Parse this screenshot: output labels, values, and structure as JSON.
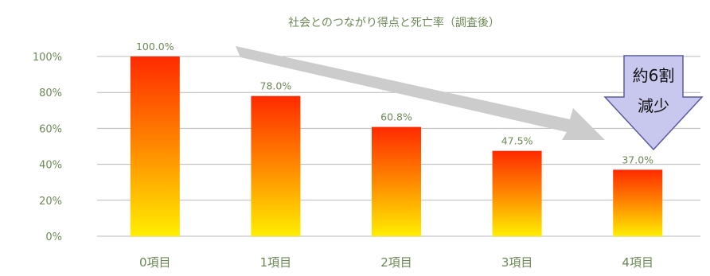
{
  "chart_data": {
    "type": "bar",
    "title": "社会とのつながり得点と死亡率（調査後）",
    "xlabel": "",
    "ylabel": "",
    "categories": [
      "0項目",
      "1項目",
      "2項目",
      "3項目",
      "4項目"
    ],
    "values": [
      100.0,
      78.0,
      60.8,
      47.5,
      37.0
    ],
    "value_labels": [
      "100.0%",
      "78.0%",
      "60.8%",
      "47.5%",
      "37.0%"
    ],
    "ylim": [
      0,
      100
    ],
    "yticks": [
      0,
      20,
      40,
      60,
      80,
      100
    ],
    "ytick_labels": [
      "0%",
      "20%",
      "40%",
      "60%",
      "80%",
      "100%"
    ],
    "grid": true,
    "legend": "none",
    "bar_gradient": {
      "top": "#ff2a00",
      "bottom": "#ffee00"
    },
    "annotation": {
      "lines": [
        "約6割",
        "減少"
      ],
      "arrow_color": "#cccccc",
      "callout_fill": "#c8c8ee",
      "callout_stroke": "#5a5aa6"
    }
  }
}
